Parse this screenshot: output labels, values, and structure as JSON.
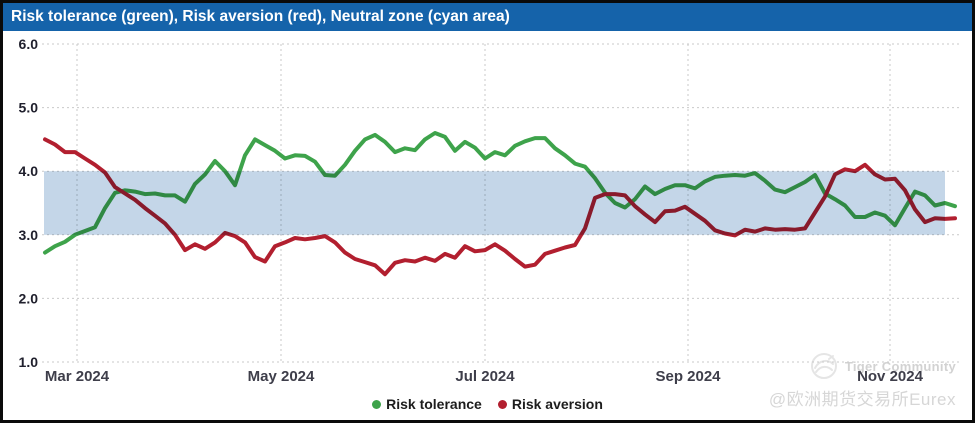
{
  "window": {
    "title": "Risk tolerance (green), Risk aversion (red), Neutral zone (cyan area)"
  },
  "titlebar_color": "#1563aa",
  "legend": {
    "items": [
      {
        "label": "Risk tolerance",
        "color": "#3ea34b"
      },
      {
        "label": "Risk aversion",
        "color": "#b21f2f"
      }
    ]
  },
  "watermark": {
    "community": "Tiger Community",
    "handle": "@欧洲期货交易所Eurex"
  },
  "chart_data": {
    "type": "line",
    "title": "Risk tolerance (green), Risk aversion (red), Neutral zone (cyan area)",
    "xlabel": "",
    "ylabel": "",
    "ylim": [
      1,
      6
    ],
    "grid": true,
    "legend_position": "bottom",
    "x_start": "2024-02-20",
    "x_interval_days": 3,
    "y_ticks": [
      {
        "label": "6.0",
        "value": 6
      },
      {
        "label": "5.0",
        "value": 5
      },
      {
        "label": "4.0",
        "value": 4
      },
      {
        "label": "3.0",
        "value": 3
      },
      {
        "label": "2.0",
        "value": 2
      },
      {
        "label": "1.0",
        "value": 1
      }
    ],
    "x_ticks": [
      {
        "label": "Mar 2024",
        "pos": 3.2
      },
      {
        "label": "May 2024",
        "pos": 23.6
      },
      {
        "label": "Jul 2024",
        "pos": 44.0
      },
      {
        "label": "Sep 2024",
        "pos": 64.3
      },
      {
        "label": "Nov 2024",
        "pos": 84.5
      }
    ],
    "neutral_zone": {
      "label": "Neutral zone (cyan area)",
      "from": 3.0,
      "to": 4.0,
      "color": "#c4d6e8",
      "end_index": 90
    },
    "series": [
      {
        "name": "Risk tolerance",
        "color": "#3ea34b",
        "values": [
          2.72,
          2.82,
          2.89,
          3.0,
          3.06,
          3.12,
          3.42,
          3.66,
          3.7,
          3.68,
          3.64,
          3.65,
          3.62,
          3.62,
          3.52,
          3.8,
          3.95,
          4.16,
          4.0,
          3.78,
          4.25,
          4.5,
          4.41,
          4.32,
          4.2,
          4.25,
          4.24,
          4.15,
          3.94,
          3.93,
          4.1,
          4.32,
          4.5,
          4.57,
          4.46,
          4.3,
          4.36,
          4.33,
          4.5,
          4.6,
          4.54,
          4.32,
          4.46,
          4.37,
          4.2,
          4.3,
          4.25,
          4.4,
          4.47,
          4.52,
          4.52,
          4.36,
          4.25,
          4.12,
          4.07,
          3.89,
          3.66,
          3.5,
          3.43,
          3.56,
          3.76,
          3.64,
          3.72,
          3.78,
          3.78,
          3.73,
          3.84,
          3.91,
          3.93,
          3.94,
          3.93,
          3.97,
          3.85,
          3.71,
          3.67,
          3.75,
          3.83,
          3.94,
          3.65,
          3.56,
          3.46,
          3.28,
          3.28,
          3.35,
          3.3,
          3.15,
          3.42,
          3.68,
          3.62,
          3.46,
          3.5,
          3.45
        ]
      },
      {
        "name": "Risk aversion",
        "color": "#b21f2f",
        "values": [
          4.5,
          4.42,
          4.3,
          4.3,
          4.2,
          4.1,
          3.98,
          3.75,
          3.65,
          3.55,
          3.42,
          3.3,
          3.18,
          3.0,
          2.76,
          2.85,
          2.78,
          2.88,
          3.03,
          2.98,
          2.88,
          2.65,
          2.58,
          2.82,
          2.88,
          2.95,
          2.93,
          2.95,
          2.98,
          2.88,
          2.72,
          2.62,
          2.57,
          2.52,
          2.38,
          2.56,
          2.6,
          2.58,
          2.64,
          2.59,
          2.7,
          2.64,
          2.82,
          2.74,
          2.76,
          2.85,
          2.75,
          2.62,
          2.5,
          2.53,
          2.7,
          2.75,
          2.8,
          2.84,
          3.1,
          3.58,
          3.64,
          3.64,
          3.62,
          3.45,
          3.32,
          3.2,
          3.37,
          3.38,
          3.44,
          3.33,
          3.22,
          3.07,
          3.02,
          2.99,
          3.08,
          3.05,
          3.1,
          3.08,
          3.09,
          3.08,
          3.1,
          3.35,
          3.6,
          3.95,
          4.03,
          4.0,
          4.1,
          3.95,
          3.87,
          3.88,
          3.7,
          3.4,
          3.2,
          3.26,
          3.25,
          3.26
        ]
      }
    ]
  }
}
